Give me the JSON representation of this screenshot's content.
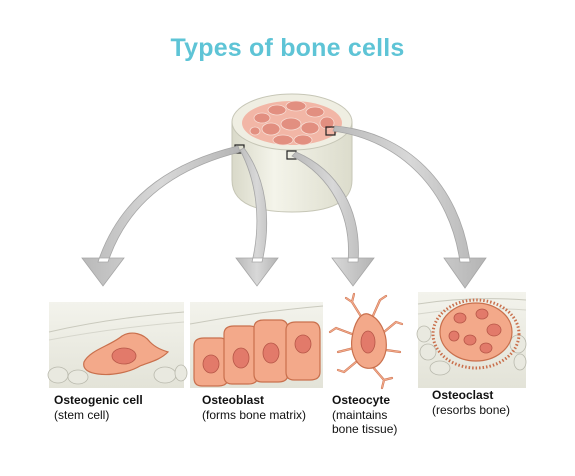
{
  "title": "Types of bone cells",
  "cells": [
    {
      "name": "Osteogenic cell",
      "description": "(stem cell)"
    },
    {
      "name": "Osteoblast",
      "description": "(forms bone matrix)"
    },
    {
      "name": "Osteocyte",
      "description": "(maintains\nbone tissue)"
    },
    {
      "name": "Osteoclast",
      "description": "(resorbs bone)"
    }
  ],
  "colors": {
    "title": "#5ec4d6",
    "cell_fill": "#f3a98a",
    "cell_stroke": "#c9704d",
    "nucleus": "#e27a6a",
    "arrow": "#c4c4c4",
    "bone": "#ecece2"
  }
}
